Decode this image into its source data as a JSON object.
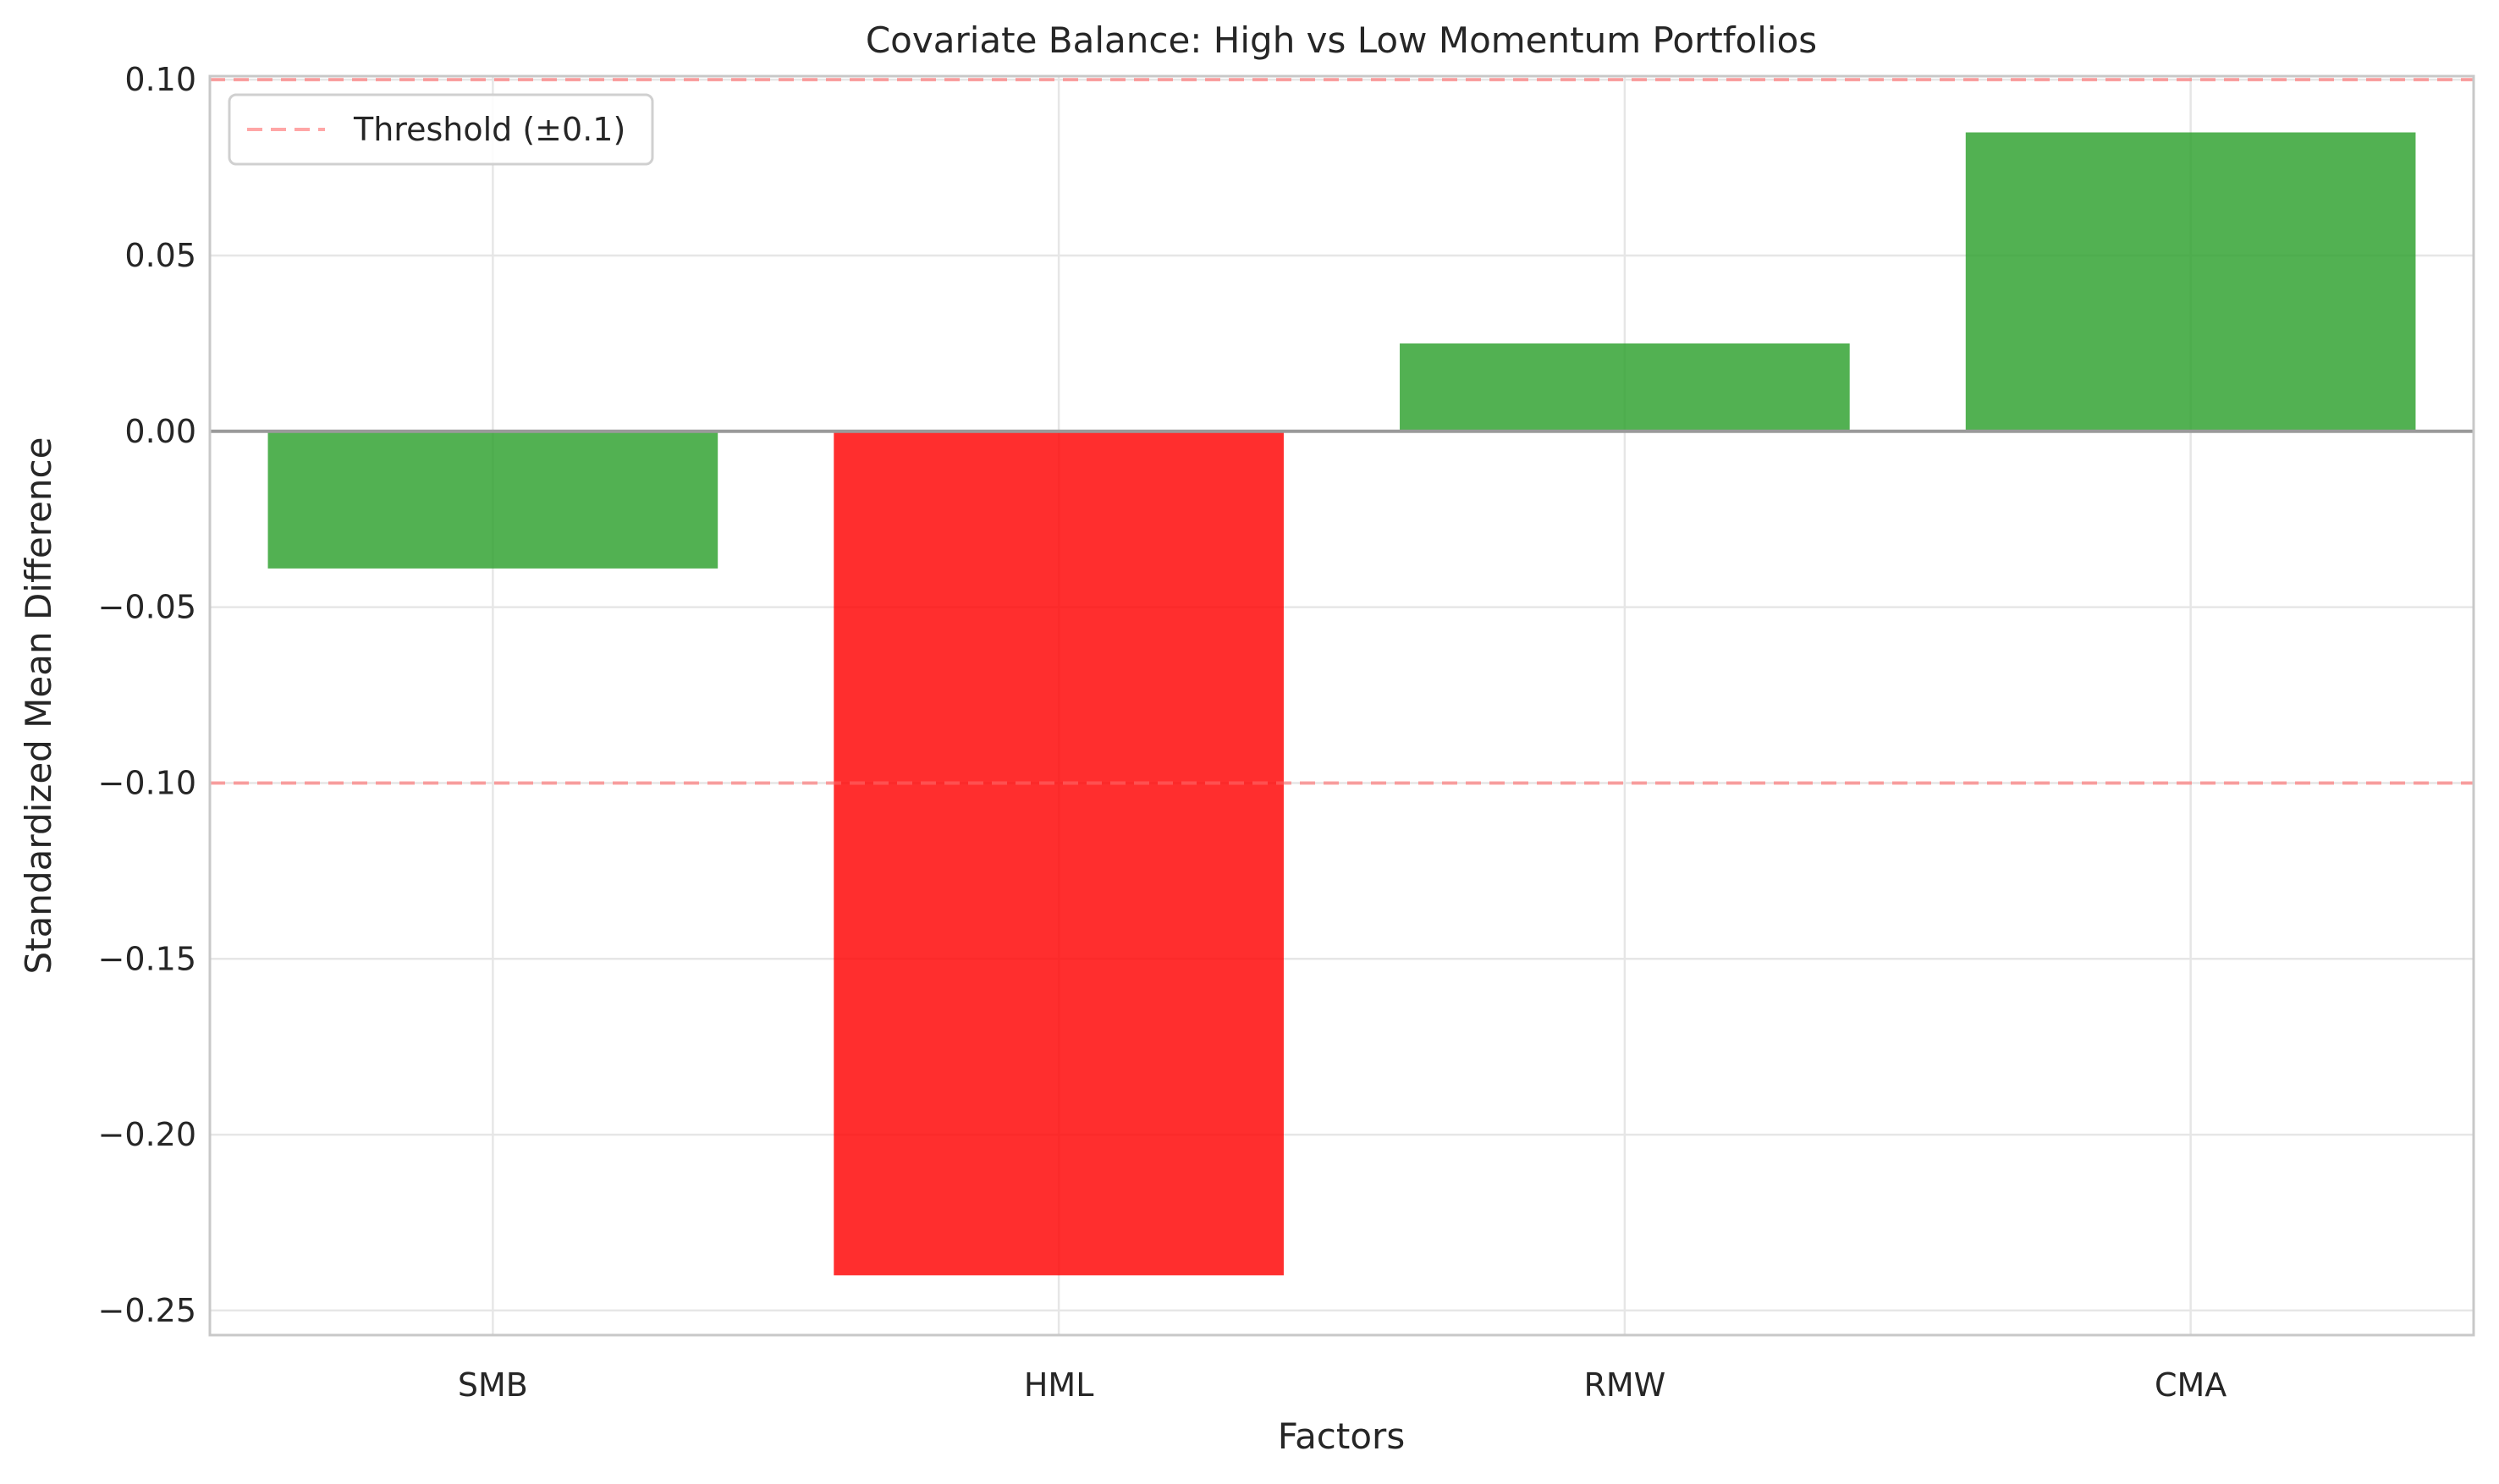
{
  "chart_data": {
    "type": "bar",
    "title": "Covariate Balance: High vs Low Momentum Portfolios",
    "xlabel": "Factors",
    "ylabel": "Standardized Mean Difference",
    "categories": [
      "SMB",
      "HML",
      "RMW",
      "CMA"
    ],
    "values": [
      -0.039,
      -0.24,
      0.025,
      0.085
    ],
    "bar_colors": [
      "#2ca02c",
      "#ff0000",
      "#2ca02c",
      "#2ca02c"
    ],
    "ylim": [
      -0.257,
      0.101
    ],
    "yticks": [
      0.1,
      0.05,
      0.0,
      -0.05,
      -0.1,
      -0.15,
      -0.2,
      -0.25
    ],
    "ytick_labels": [
      "0.10",
      "0.05",
      "0.00",
      "−0.05",
      "−0.10",
      "−0.15",
      "−0.20",
      "−0.25"
    ],
    "threshold": 0.1,
    "threshold_color": "#ff6b6b",
    "legend": {
      "label": "Threshold (±0.1)",
      "placement": "top-left"
    },
    "grid": true
  }
}
